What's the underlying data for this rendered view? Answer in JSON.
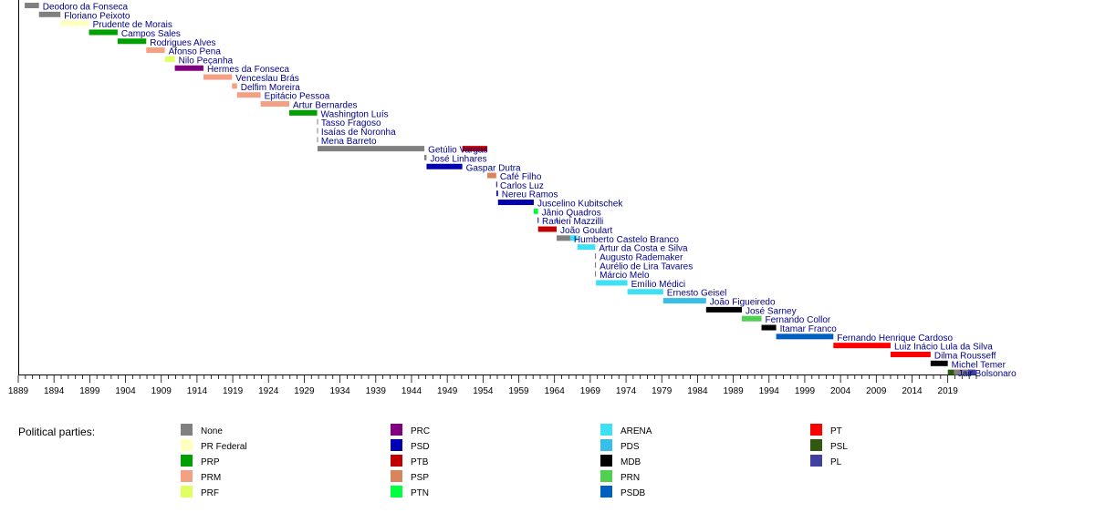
{
  "chart_data": {
    "type": "bar",
    "title": "",
    "xlabel": "",
    "ylabel": "",
    "xlim": [
      1889,
      2023
    ],
    "grid": false,
    "x_ticks": [
      1889,
      1894,
      1899,
      1904,
      1909,
      1914,
      1919,
      1924,
      1929,
      1934,
      1939,
      1944,
      1949,
      1954,
      1959,
      1964,
      1969,
      1974,
      1979,
      1984,
      1989,
      1994,
      1999,
      2004,
      2009,
      2014,
      2019
    ],
    "presidents": [
      {
        "name": "Deodoro da Fonseca",
        "start": 1889.9,
        "end": 1891.9,
        "party": "None"
      },
      {
        "name": "Floriano Peixoto",
        "start": 1891.9,
        "end": 1894.9,
        "party": "None"
      },
      {
        "name": "Prudente de Morais",
        "start": 1894.9,
        "end": 1898.9,
        "party": "PR Federal"
      },
      {
        "name": "Campos Sales",
        "start": 1898.9,
        "end": 1902.9,
        "party": "PRP"
      },
      {
        "name": "Rodrigues Alves",
        "start": 1902.9,
        "end": 1906.9,
        "party": "PRP"
      },
      {
        "name": "Afonso Pena",
        "start": 1906.9,
        "end": 1909.5,
        "party": "PRM"
      },
      {
        "name": "Nilo Peçanha",
        "start": 1909.5,
        "end": 1910.9,
        "party": "PRF"
      },
      {
        "name": "Hermes da Fonseca",
        "start": 1910.9,
        "end": 1914.9,
        "party": "PRC"
      },
      {
        "name": "Venceslau Brás",
        "start": 1914.9,
        "end": 1918.9,
        "party": "PRM"
      },
      {
        "name": "Delfim Moreira",
        "start": 1918.9,
        "end": 1919.6,
        "party": "PRM"
      },
      {
        "name": "Epitácio Pessoa",
        "start": 1919.6,
        "end": 1922.9,
        "party": "PRM"
      },
      {
        "name": "Artur Bernardes",
        "start": 1922.9,
        "end": 1926.9,
        "party": "PRM"
      },
      {
        "name": "Washington Luís",
        "start": 1926.9,
        "end": 1930.8,
        "party": "PRP"
      },
      {
        "name": "Tasso Fragoso",
        "start": 1930.8,
        "end": 1930.85,
        "party": "None"
      },
      {
        "name": "Isaías de Noronha",
        "start": 1930.8,
        "end": 1930.85,
        "party": "None"
      },
      {
        "name": "Mena Barreto",
        "start": 1930.8,
        "end": 1930.85,
        "party": "None"
      },
      {
        "name": "Getúlio Vargas",
        "start": 1930.85,
        "end": 1945.8,
        "party": "None"
      },
      {
        "name": "Getúlio Vargas",
        "start": 1951.1,
        "end": 1954.6,
        "party": "PTB",
        "label": false
      },
      {
        "name": "José Linhares",
        "start": 1945.8,
        "end": 1946.1,
        "party": "None"
      },
      {
        "name": "Gaspar Dutra",
        "start": 1946.1,
        "end": 1951.1,
        "party": "PSD"
      },
      {
        "name": "Café Filho",
        "start": 1954.6,
        "end": 1955.85,
        "party": "PSP"
      },
      {
        "name": "Carlos Luz",
        "start": 1955.85,
        "end": 1955.88,
        "party": "PSD"
      },
      {
        "name": "Nereu Ramos",
        "start": 1955.88,
        "end": 1956.1,
        "party": "PSD"
      },
      {
        "name": "Juscelino Kubitschek",
        "start": 1956.1,
        "end": 1961.1,
        "party": "PSD"
      },
      {
        "name": "Jânio Quadros",
        "start": 1961.1,
        "end": 1961.7,
        "party": "PTN"
      },
      {
        "name": "Ranieri Mazzilli",
        "start": 1961.65,
        "end": 1961.75,
        "party": "PSD"
      },
      {
        "name": "Ranieri Mazzilli",
        "start": 1964.25,
        "end": 1964.3,
        "party": "PSD",
        "label": false
      },
      {
        "name": "João Goulart",
        "start": 1961.7,
        "end": 1964.3,
        "party": "PTB"
      },
      {
        "name": "Humberto Castelo Branco",
        "start": 1964.3,
        "end": 1966.2,
        "party": "None"
      },
      {
        "name": "Humberto Castelo Branco",
        "start": 1966.2,
        "end": 1967.2,
        "party": "ARENA",
        "label": false
      },
      {
        "name": "Artur da Costa e Silva",
        "start": 1967.2,
        "end": 1969.7,
        "party": "ARENA"
      },
      {
        "name": "Augusto Rademaker",
        "start": 1969.65,
        "end": 1969.8,
        "party": "None"
      },
      {
        "name": "Aurélio de Lira Tavares",
        "start": 1969.65,
        "end": 1969.8,
        "party": "None"
      },
      {
        "name": "Márcio Melo",
        "start": 1969.65,
        "end": 1969.8,
        "party": "None"
      },
      {
        "name": "Emílio Médici",
        "start": 1969.8,
        "end": 1974.2,
        "party": "ARENA"
      },
      {
        "name": "Ernesto Geisel",
        "start": 1974.2,
        "end": 1979.2,
        "party": "ARENA"
      },
      {
        "name": "João Figueiredo",
        "start": 1979.2,
        "end": 1985.2,
        "party": "PDS"
      },
      {
        "name": "José Sarney",
        "start": 1985.2,
        "end": 1990.2,
        "party": "MDB"
      },
      {
        "name": "Fernando Collor",
        "start": 1990.2,
        "end": 1992.95,
        "party": "PRN"
      },
      {
        "name": "Itamar Franco",
        "start": 1992.95,
        "end": 1995.0,
        "party": "MDB"
      },
      {
        "name": "Fernando Henrique Cardoso",
        "start": 1995.0,
        "end": 2003.0,
        "party": "PSDB"
      },
      {
        "name": "Luiz Inácio Lula da Silva",
        "start": 2003.0,
        "end": 2011.0,
        "party": "PT"
      },
      {
        "name": "Dilma Rousseff",
        "start": 2011.0,
        "end": 2016.6,
        "party": "PT"
      },
      {
        "name": "Michel Temer",
        "start": 2016.6,
        "end": 2019.0,
        "party": "MDB"
      },
      {
        "name": "Jair Bolsonaro",
        "start": 2019.0,
        "end": 2019.9,
        "party": "PSL"
      },
      {
        "name": "Jair Bolsonaro",
        "start": 2019.9,
        "end": 2021.9,
        "party": "None",
        "label": false
      },
      {
        "name": "Jair Bolsonaro",
        "start": 2021.9,
        "end": 2022.9,
        "party": "PL",
        "label": false
      }
    ],
    "rows": [
      "Deodoro da Fonseca",
      "Floriano Peixoto",
      "Prudente de Morais",
      "Campos Sales",
      "Rodrigues Alves",
      "Afonso Pena",
      "Nilo Peçanha",
      "Hermes da Fonseca",
      "Venceslau Brás",
      "Delfim Moreira",
      "Epitácio Pessoa",
      "Artur Bernardes",
      "Washington Luís",
      "Tasso Fragoso",
      "Isaías de Noronha",
      "Mena Barreto",
      "Getúlio Vargas",
      "José Linhares",
      "Gaspar Dutra",
      "Café Filho",
      "Carlos Luz",
      "Nereu Ramos",
      "Juscelino Kubitschek",
      "Jânio Quadros",
      "Ranieri Mazzilli",
      "João Goulart",
      "Humberto Castelo Branco",
      "Artur da Costa e Silva",
      "Augusto Rademaker",
      "Aurélio de Lira Tavares",
      "Márcio Melo",
      "Emílio Médici",
      "Ernesto Geisel",
      "João Figueiredo",
      "José Sarney",
      "Fernando Collor",
      "Itamar Franco",
      "Fernando Henrique Cardoso",
      "Luiz Inácio Lula da Silva",
      "Dilma Rousseff",
      "Michel Temer",
      "Jair Bolsonaro"
    ],
    "legend": {
      "title": "Political parties:",
      "placement": "bottom",
      "columns": [
        [
          {
            "name": "None",
            "color": "#808080"
          },
          {
            "name": "PR Federal",
            "color": "#ffffbf"
          },
          {
            "name": "PRP",
            "color": "#00a000"
          },
          {
            "name": "PRM",
            "color": "#f4a083"
          },
          {
            "name": "PRF",
            "color": "#e0ff60"
          }
        ],
        [
          {
            "name": "PRC",
            "color": "#800080"
          },
          {
            "name": "PSD",
            "color": "#0000b0"
          },
          {
            "name": "PTB",
            "color": "#c00000"
          },
          {
            "name": "PSP",
            "color": "#d8845c"
          },
          {
            "name": "PTN",
            "color": "#00ff40"
          }
        ],
        [
          {
            "name": "ARENA",
            "color": "#40e0f4"
          },
          {
            "name": "PDS",
            "color": "#38bfe8"
          },
          {
            "name": "MDB",
            "color": "#000000"
          },
          {
            "name": "PRN",
            "color": "#50d050"
          },
          {
            "name": "PSDB",
            "color": "#0060c0"
          }
        ],
        [
          {
            "name": "PT",
            "color": "#ff0000"
          },
          {
            "name": "PSL",
            "color": "#2f5a10"
          },
          {
            "name": "PL",
            "color": "#4040a0"
          }
        ]
      ]
    }
  }
}
